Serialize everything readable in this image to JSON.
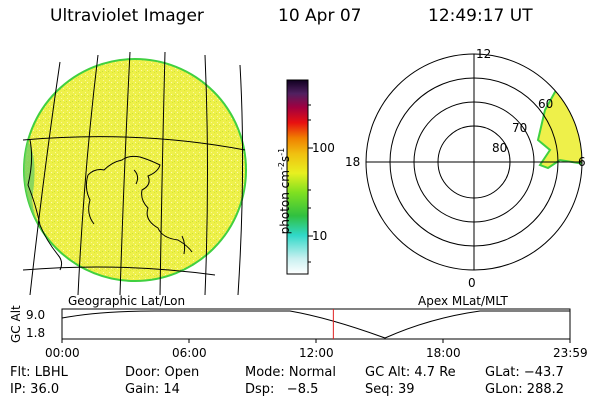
{
  "header": {
    "title": "Ultraviolet Imager",
    "date": "10 Apr 07",
    "time": "12:49:17 UT"
  },
  "colorbar": {
    "unit_label": "photon cm",
    "unit_exp1": "-2",
    "unit_s": "s",
    "unit_exp2": "-1",
    "tick_labels": [
      "100",
      "10"
    ]
  },
  "left_panel": {
    "caption": "Geographic Lat/Lon"
  },
  "right_panel": {
    "caption": "Apex MLat/MLT",
    "mlt_labels": {
      "top": "12",
      "left": "18",
      "right": "6",
      "bottom": "0"
    },
    "lat_labels": [
      "60",
      "70",
      "80"
    ]
  },
  "timeline": {
    "axis_label": "GC Alt",
    "y_ticks": [
      "9.0",
      "1.8"
    ],
    "x_ticks": [
      "00:00",
      "06:00",
      "12:00",
      "18:00",
      "23:59"
    ],
    "marker_time_hours": 12.82
  },
  "info": {
    "filter": "Flt: LBHL",
    "door": "Door: Open",
    "mode": "Mode: Normal",
    "gc_alt": "GC Alt: 4.7 Re",
    "glat": "GLat: −43.7",
    "ip": "IP: 36.0",
    "gain": "Gain: 14",
    "dsp": "Dsp:   −8.5",
    "seq": "Seq: 39",
    "glon": "GLon: 288.2"
  },
  "colors": {
    "image_fill": "#f0f050",
    "limb": "#40d040",
    "marker": "#e02020"
  }
}
